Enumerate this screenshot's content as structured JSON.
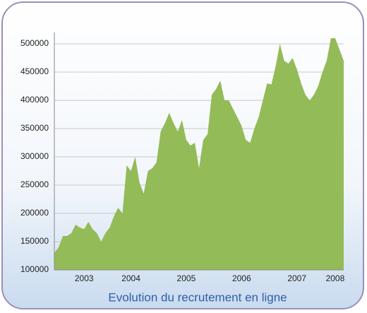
{
  "chart_data": {
    "type": "area",
    "title": "Evolution du recrutement en ligne",
    "categories": [
      null,
      null,
      null,
      null,
      null,
      null,
      null,
      "2003",
      null,
      null,
      null,
      null,
      null,
      null,
      null,
      null,
      null,
      null,
      "2004",
      null,
      null,
      null,
      null,
      null,
      null,
      null,
      null,
      null,
      null,
      null,
      null,
      "2005",
      null,
      null,
      null,
      null,
      null,
      null,
      null,
      null,
      null,
      null,
      null,
      null,
      "2006",
      null,
      null,
      null,
      null,
      null,
      null,
      null,
      null,
      null,
      null,
      null,
      null,
      "2007",
      null,
      null,
      null,
      null,
      null,
      null,
      null,
      null,
      "2008",
      null,
      null
    ],
    "values": [
      130000,
      140000,
      160000,
      160000,
      165000,
      180000,
      175000,
      172000,
      185000,
      172000,
      165000,
      150000,
      165000,
      175000,
      195000,
      210000,
      200000,
      285000,
      275000,
      300000,
      255000,
      235000,
      275000,
      280000,
      290000,
      345000,
      360000,
      378000,
      360000,
      345000,
      365000,
      330000,
      320000,
      325000,
      280000,
      330000,
      340000,
      410000,
      420000,
      435000,
      400000,
      400000,
      385000,
      370000,
      355000,
      330000,
      325000,
      350000,
      370000,
      400000,
      430000,
      428000,
      460000,
      500000,
      470000,
      465000,
      475000,
      455000,
      430000,
      410000,
      400000,
      410000,
      425000,
      450000,
      470000,
      510000,
      510000,
      490000,
      470000
    ],
    "color": "#93bb58",
    "ylim": [
      100000,
      520000
    ],
    "yticks": [
      100000,
      150000,
      200000,
      250000,
      300000,
      350000,
      400000,
      450000,
      500000
    ],
    "grid": true
  }
}
